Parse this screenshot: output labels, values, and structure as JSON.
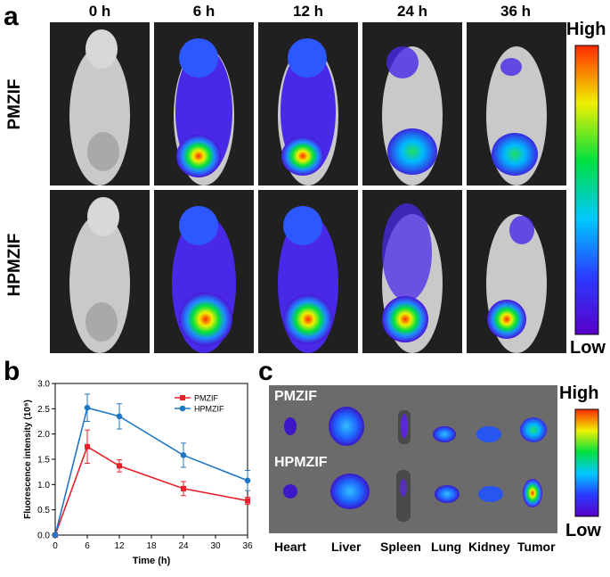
{
  "panel_a": {
    "letter": "a",
    "timepoints": [
      "0 h",
      "6 h",
      "12 h",
      "24 h",
      "36 h"
    ],
    "rows": [
      "PMZIF",
      "HPMZIF"
    ],
    "colorbar": {
      "high": "High",
      "low": "Low"
    }
  },
  "panel_b": {
    "letter": "b",
    "chart_data": {
      "type": "line",
      "xlabel": "Time (h)",
      "ylabel": "Fluorescence intensity (10⁹)",
      "xlim": [
        0,
        36
      ],
      "ylim": [
        0,
        3.0
      ],
      "xticks": [
        "0",
        "6",
        "12",
        "18",
        "24",
        "30",
        "36"
      ],
      "yticks": [
        "0.0",
        "0.5",
        "1.0",
        "1.5",
        "2.0",
        "2.5",
        "3.0"
      ],
      "x": [
        0,
        6,
        12,
        24,
        36
      ],
      "series": [
        {
          "name": "PMZIF",
          "color": "#e8202a",
          "values": [
            0.0,
            1.75,
            1.37,
            0.92,
            0.68
          ],
          "errors": [
            0.02,
            0.33,
            0.12,
            0.14,
            0.07
          ]
        },
        {
          "name": "HPMZIF",
          "color": "#1f77c4",
          "values": [
            0.0,
            2.52,
            2.35,
            1.58,
            1.08
          ],
          "errors": [
            0.02,
            0.27,
            0.25,
            0.24,
            0.2
          ]
        }
      ],
      "legend": "top-right"
    }
  },
  "panel_c": {
    "letter": "c",
    "groups": [
      "PMZIF",
      "HPMZIF"
    ],
    "organs": [
      "Heart",
      "Liver",
      "Spleen",
      "Lung",
      "Kidney",
      "Tumor"
    ],
    "colorbar": {
      "high": "High",
      "low": "Low"
    }
  }
}
